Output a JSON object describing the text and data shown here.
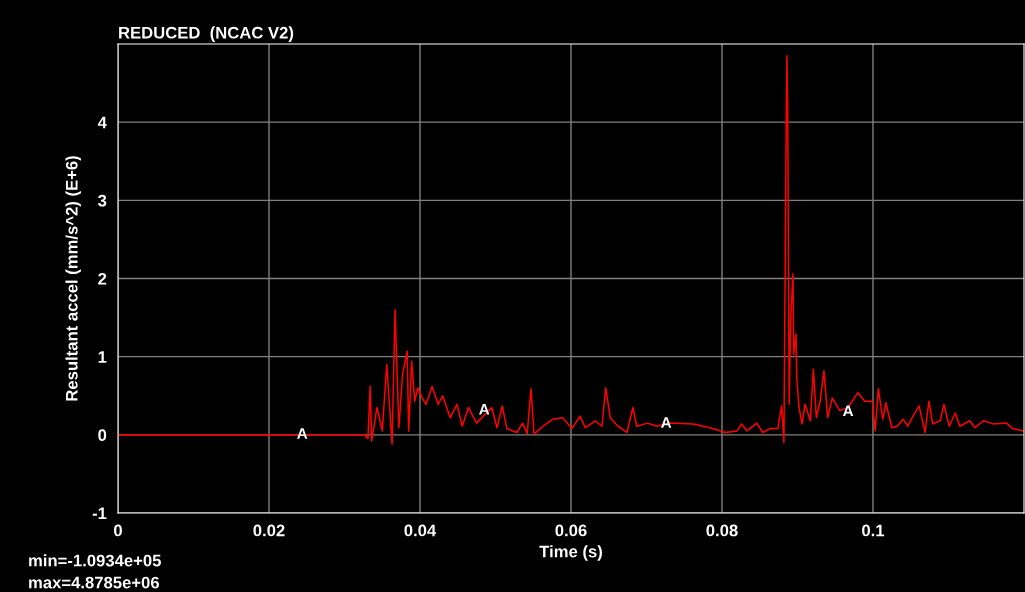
{
  "chart_data": {
    "type": "line",
    "title": "REDUCED  (NCAC V2)",
    "xlabel": "Time (s)",
    "ylabel": "Resultant accel (mm/s^2) (E+6)",
    "xlim": [
      0,
      0.12
    ],
    "xticks": [
      0,
      0.02,
      0.04,
      0.06,
      0.08,
      0.1
    ],
    "ylim": [
      -1,
      5
    ],
    "yticks": [
      -1,
      0,
      1,
      2,
      3,
      4
    ],
    "grid": true,
    "marker": "none",
    "line_style": "solid",
    "series": [
      {
        "color": "#ff0000",
        "x": [
          0,
          0.0327,
          0.0331,
          0.0334,
          0.0336,
          0.0343,
          0.035,
          0.0356,
          0.0363,
          0.0367,
          0.0372,
          0.0377,
          0.0383,
          0.0385,
          0.0389,
          0.0393,
          0.0397,
          0.0403,
          0.0408,
          0.0416,
          0.0424,
          0.043,
          0.044,
          0.0449,
          0.0456,
          0.0464,
          0.0475,
          0.0495,
          0.0502,
          0.0509,
          0.0515,
          0.0528,
          0.0536,
          0.0542,
          0.0547,
          0.0551,
          0.0563,
          0.0576,
          0.0589,
          0.0601,
          0.0612,
          0.0619,
          0.0632,
          0.0641,
          0.0646,
          0.0652,
          0.0662,
          0.0674,
          0.0682,
          0.0687,
          0.0701,
          0.0714,
          0.0731,
          0.0762,
          0.0788,
          0.0804,
          0.082,
          0.0826,
          0.0833,
          0.0846,
          0.0854,
          0.0864,
          0.0874,
          0.0879,
          0.0882,
          0.0885,
          0.0886,
          0.0887,
          0.0889,
          0.0891,
          0.0894,
          0.0895,
          0.0898,
          0.0899,
          0.0902,
          0.0906,
          0.091,
          0.0917,
          0.0921,
          0.0925,
          0.093,
          0.0935,
          0.094,
          0.0946,
          0.0956,
          0.0967,
          0.098,
          0.0989,
          0.0999,
          0.1003,
          0.1007,
          0.1013,
          0.1017,
          0.1025,
          0.1032,
          0.104,
          0.1046,
          0.1053,
          0.1061,
          0.1069,
          0.1074,
          0.1079,
          0.1089,
          0.1094,
          0.1101,
          0.1109,
          0.1115,
          0.1128,
          0.1135,
          0.1146,
          0.1159,
          0.1177,
          0.1185,
          0.1199
        ],
        "values": [
          0,
          0,
          -0.05,
          0.62,
          -0.08,
          0.35,
          0.05,
          0.9,
          -0.12,
          1.6,
          0.09,
          0.78,
          1.07,
          0.05,
          0.94,
          0.43,
          0.6,
          0.47,
          0.39,
          0.62,
          0.39,
          0.5,
          0.22,
          0.39,
          0.11,
          0.35,
          0.15,
          0.35,
          0.09,
          0.37,
          0.08,
          0.03,
          0.15,
          0.01,
          0.59,
          0.01,
          0.11,
          0.2,
          0.22,
          0.08,
          0.24,
          0.09,
          0.18,
          0.11,
          0.6,
          0.22,
          0.11,
          0.03,
          0.35,
          0.11,
          0.15,
          0.11,
          0.15,
          0.14,
          0.08,
          0.03,
          0.05,
          0.14,
          0.05,
          0.15,
          0.03,
          0.08,
          0.08,
          0.37,
          -0.1,
          3.96,
          4.85,
          4.17,
          0.39,
          1.49,
          2.06,
          1.03,
          1.29,
          0.73,
          0.35,
          0.14,
          0.39,
          0.18,
          0.84,
          0.22,
          0.43,
          0.82,
          0.22,
          0.47,
          0.31,
          0.35,
          0.54,
          0.43,
          0.43,
          0.05,
          0.59,
          0.2,
          0.41,
          0.09,
          0.11,
          0.2,
          0.11,
          0.24,
          0.37,
          0.03,
          0.43,
          0.14,
          0.18,
          0.39,
          0.11,
          0.28,
          0.11,
          0.18,
          0.09,
          0.18,
          0.14,
          0.15,
          0.08,
          0.05
        ]
      }
    ],
    "annotations": [
      {
        "text": "A",
        "x": 0.0244,
        "y": 0
      },
      {
        "text": "A",
        "x": 0.0485,
        "y": 0.31
      },
      {
        "text": "A",
        "x": 0.0726,
        "y": 0.14
      },
      {
        "text": "A",
        "x": 0.0967,
        "y": 0.29
      },
      "min=-1.0934e+05",
      "max=4.8785e+06"
    ]
  }
}
